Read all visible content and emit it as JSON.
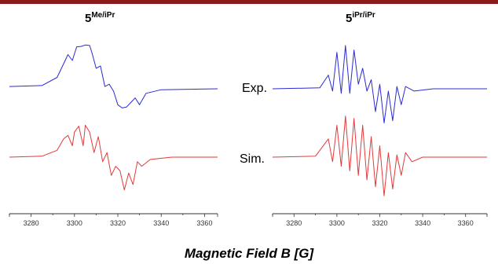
{
  "colors": {
    "exp": "#2b2bd4",
    "sim": "#e23a3a",
    "bar": "#8b1a1a",
    "axis": "#333333"
  },
  "chart_data": {
    "type": "line",
    "xlabel": "Magnetic Field B [G]",
    "ylabel": "",
    "grid": false,
    "panels": [
      {
        "title_base": "5",
        "title_sup": "Me/iPr",
        "xlim": [
          3270,
          3366
        ],
        "xticks": [
          3280,
          3300,
          3320,
          3340,
          3360
        ],
        "series": [
          {
            "name": "Exp.",
            "x": [
              3270,
              3285,
              3292,
              3295,
              3297,
              3299,
              3301,
              3303,
              3305,
              3307,
              3308,
              3310,
              3312,
              3314,
              3316,
              3318,
              3320,
              3322,
              3324,
              3326,
              3328,
              3330,
              3333,
              3340,
              3366
            ],
            "y": [
              0.05,
              0.07,
              0.25,
              0.55,
              0.75,
              0.62,
              0.92,
              0.93,
              0.96,
              0.95,
              0.8,
              0.45,
              0.5,
              0.05,
              0.1,
              -0.05,
              -0.35,
              -0.42,
              -0.4,
              -0.3,
              -0.2,
              -0.35,
              -0.1,
              -0.02,
              0.0
            ],
            "label_visible": true
          },
          {
            "name": "Sim.",
            "x": [
              3270,
              3285,
              3292,
              3295,
              3297,
              3299,
              3300,
              3302,
              3304,
              3305,
              3307,
              3309,
              3311,
              3313,
              3315,
              3317,
              3319,
              3321,
              3323,
              3325,
              3327,
              3329,
              3331,
              3335,
              3345,
              3366
            ],
            "y": [
              0.0,
              0.02,
              0.15,
              0.4,
              0.48,
              0.25,
              0.55,
              0.68,
              0.25,
              0.7,
              0.55,
              0.1,
              0.45,
              -0.1,
              0.1,
              -0.4,
              -0.2,
              -0.3,
              -0.72,
              -0.35,
              -0.6,
              -0.1,
              -0.2,
              -0.05,
              0.0,
              0.0
            ],
            "label_visible": true
          }
        ]
      },
      {
        "title_base": "5",
        "title_sup": "iPr/iPr",
        "xlim": [
          3270,
          3370
        ],
        "xticks": [
          3280,
          3300,
          3320,
          3340,
          3360
        ],
        "series": [
          {
            "name": "Exp.",
            "x": [
              3270,
              3292,
              3296,
              3298,
              3300,
              3302,
              3304,
              3306,
              3308,
              3310,
              3312,
              3314,
              3316,
              3318,
              3320,
              3322,
              3324,
              3326,
              3328,
              3330,
              3332,
              3336,
              3345,
              3370
            ],
            "y": [
              0.0,
              0.02,
              0.3,
              -0.05,
              0.8,
              -0.1,
              0.95,
              -0.1,
              0.85,
              0.1,
              0.45,
              -0.05,
              0.2,
              -0.5,
              0.1,
              -0.75,
              -0.05,
              -0.7,
              0.05,
              -0.35,
              0.05,
              -0.05,
              0.0,
              0.0
            ],
            "label_visible": false
          },
          {
            "name": "Sim.",
            "x": [
              3270,
              3290,
              3296,
              3298,
              3300,
              3302,
              3304,
              3306,
              3308,
              3310,
              3312,
              3314,
              3316,
              3318,
              3320,
              3322,
              3324,
              3326,
              3328,
              3330,
              3332,
              3335,
              3340,
              3370
            ],
            "y": [
              0.0,
              0.02,
              0.4,
              -0.1,
              0.7,
              -0.2,
              0.9,
              -0.3,
              0.85,
              -0.4,
              0.7,
              -0.5,
              0.45,
              -0.65,
              0.25,
              -0.85,
              0.1,
              -0.7,
              0.05,
              -0.4,
              0.1,
              -0.1,
              0.0,
              0.0
            ],
            "label_visible": false
          }
        ]
      }
    ]
  }
}
